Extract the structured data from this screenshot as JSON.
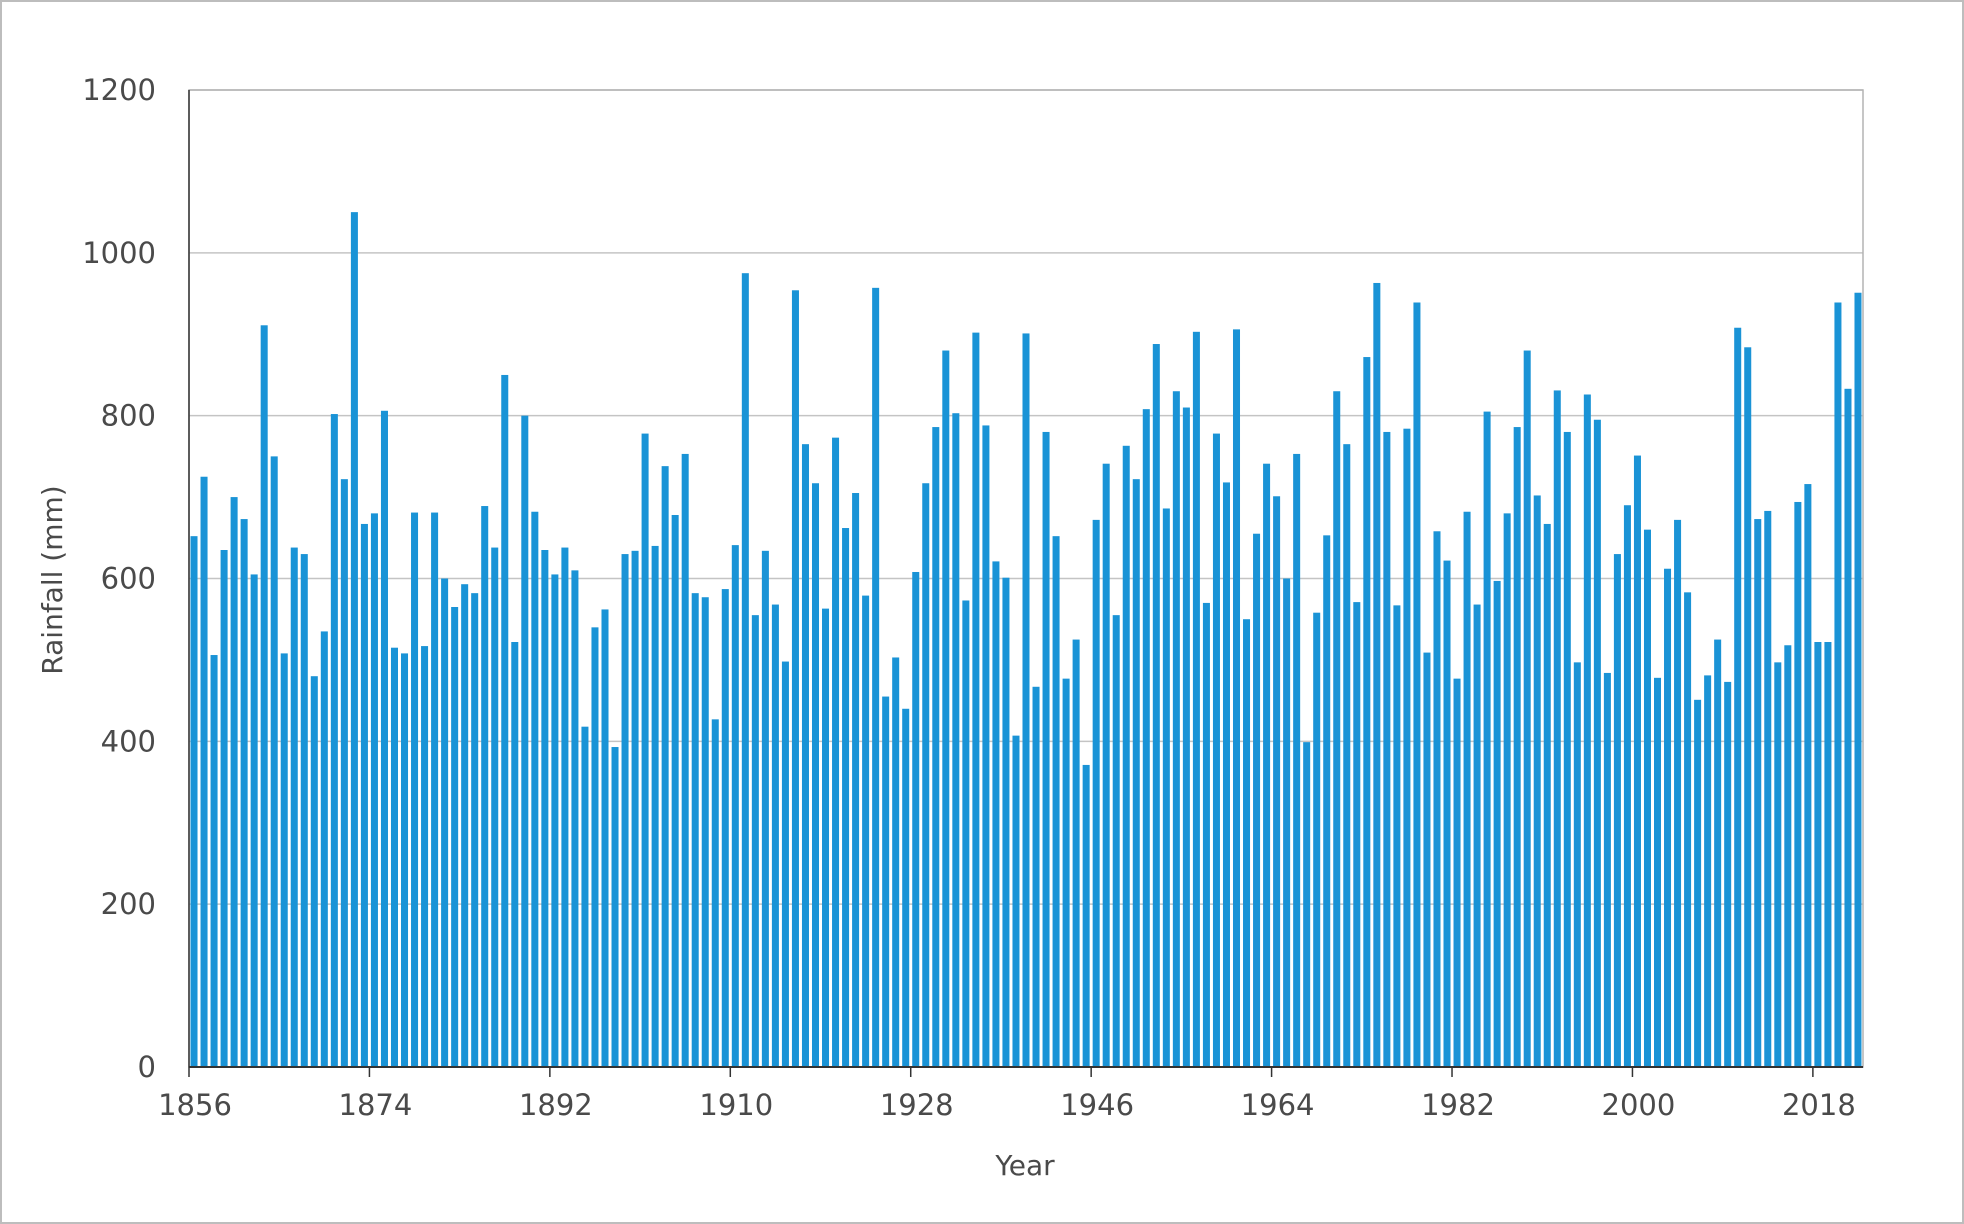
{
  "chart_data": {
    "type": "bar",
    "title": "",
    "xlabel": "Year",
    "ylabel": "Rainfall (mm)",
    "ylim": [
      0,
      1200
    ],
    "yticks": [
      0,
      200,
      400,
      600,
      800,
      1000,
      1200
    ],
    "xticks": [
      1856,
      1874,
      1892,
      1910,
      1928,
      1946,
      1964,
      1982,
      2000,
      2018
    ],
    "grid": "horizontal",
    "bar_color": "#1a93d6",
    "start_year": 1856,
    "years": [
      1856,
      1857,
      1858,
      1859,
      1860,
      1861,
      1862,
      1863,
      1864,
      1865,
      1866,
      1867,
      1868,
      1869,
      1870,
      1871,
      1872,
      1873,
      1874,
      1875,
      1876,
      1877,
      1878,
      1879,
      1880,
      1881,
      1882,
      1883,
      1884,
      1885,
      1886,
      1887,
      1888,
      1889,
      1890,
      1891,
      1892,
      1893,
      1894,
      1895,
      1896,
      1897,
      1898,
      1899,
      1900,
      1901,
      1902,
      1903,
      1904,
      1905,
      1906,
      1907,
      1908,
      1909,
      1910,
      1911,
      1912,
      1913,
      1914,
      1915,
      1916,
      1917,
      1918,
      1919,
      1920,
      1921,
      1922,
      1923,
      1924,
      1925,
      1926,
      1927,
      1928,
      1929,
      1930,
      1931,
      1932,
      1933,
      1934,
      1935,
      1936,
      1937,
      1938,
      1939,
      1940,
      1941,
      1942,
      1943,
      1944,
      1945,
      1946,
      1947,
      1948,
      1949,
      1950,
      1951,
      1952,
      1953,
      1954,
      1955,
      1956,
      1957,
      1958,
      1959,
      1960,
      1961,
      1962,
      1963,
      1964,
      1965,
      1966,
      1967,
      1968,
      1969,
      1970,
      1971,
      1972,
      1973,
      1974,
      1975,
      1976,
      1977,
      1978,
      1979,
      1980,
      1981,
      1982,
      1983,
      1984,
      1985,
      1986,
      1987,
      1988,
      1989,
      1990,
      1991,
      1992,
      1993,
      1994,
      1995,
      1996,
      1997,
      1998,
      1999,
      2000,
      2001,
      2002,
      2003,
      2004,
      2005,
      2006,
      2007,
      2008,
      2009,
      2010,
      2011,
      2012,
      2013,
      2014,
      2015,
      2016,
      2017,
      2018,
      2019,
      2020,
      2021,
      2022
    ],
    "values": [
      652,
      725,
      506,
      635,
      700,
      673,
      605,
      911,
      750,
      508,
      638,
      630,
      480,
      535,
      802,
      722,
      1050,
      667,
      680,
      806,
      515,
      508,
      681,
      517,
      681,
      600,
      565,
      593,
      582,
      689,
      638,
      850,
      522,
      800,
      682,
      635,
      605,
      638,
      610,
      418,
      540,
      562,
      393,
      630,
      634,
      778,
      640,
      738,
      678,
      753,
      582,
      577,
      427,
      587,
      641,
      975,
      555,
      634,
      568,
      498,
      954,
      765,
      717,
      563,
      773,
      662,
      705,
      579,
      957,
      455,
      503,
      440,
      608,
      717,
      786,
      880,
      803,
      573,
      902,
      788,
      621,
      601,
      407,
      901,
      467,
      780,
      652,
      477,
      525,
      371,
      672,
      741,
      555,
      763,
      722,
      808,
      888,
      686,
      830,
      810,
      903,
      570,
      778,
      718,
      906,
      550,
      655,
      741,
      701,
      600,
      753,
      399,
      558,
      653,
      830,
      765,
      571,
      872,
      963,
      780,
      567,
      784,
      939,
      509,
      658,
      622,
      477,
      682,
      568,
      805,
      597,
      680,
      786,
      880,
      702,
      667,
      831,
      780,
      497,
      826,
      795,
      484,
      630,
      690,
      751,
      660,
      478,
      612,
      672,
      583,
      451,
      481,
      525,
      473,
      908,
      884,
      673,
      683,
      497,
      518,
      694,
      716,
      522,
      522,
      939,
      833,
      951
    ]
  }
}
